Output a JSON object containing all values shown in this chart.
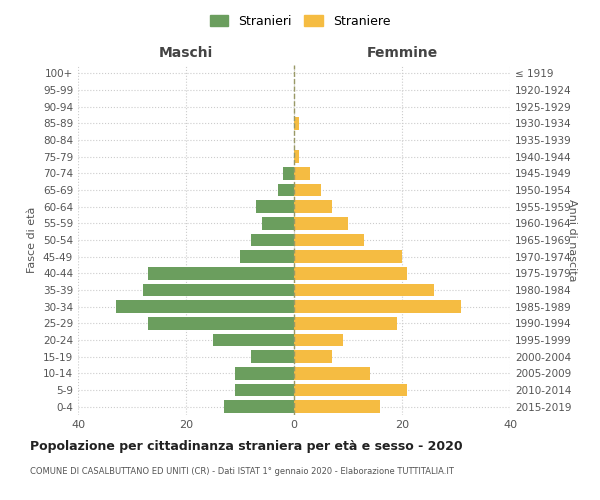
{
  "age_groups": [
    "0-4",
    "5-9",
    "10-14",
    "15-19",
    "20-24",
    "25-29",
    "30-34",
    "35-39",
    "40-44",
    "45-49",
    "50-54",
    "55-59",
    "60-64",
    "65-69",
    "70-74",
    "75-79",
    "80-84",
    "85-89",
    "90-94",
    "95-99",
    "100+"
  ],
  "birth_years": [
    "2015-2019",
    "2010-2014",
    "2005-2009",
    "2000-2004",
    "1995-1999",
    "1990-1994",
    "1985-1989",
    "1980-1984",
    "1975-1979",
    "1970-1974",
    "1965-1969",
    "1960-1964",
    "1955-1959",
    "1950-1954",
    "1945-1949",
    "1940-1944",
    "1935-1939",
    "1930-1934",
    "1925-1929",
    "1920-1924",
    "≤ 1919"
  ],
  "maschi": [
    13,
    11,
    11,
    8,
    15,
    27,
    33,
    28,
    27,
    10,
    8,
    6,
    7,
    3,
    2,
    0,
    0,
    0,
    0,
    0,
    0
  ],
  "femmine": [
    16,
    21,
    14,
    7,
    9,
    19,
    31,
    26,
    21,
    20,
    13,
    10,
    7,
    5,
    3,
    1,
    0,
    1,
    0,
    0,
    0
  ],
  "color_maschi": "#6b9e5e",
  "color_femmine": "#f5bc42",
  "background_color": "#ffffff",
  "grid_color": "#cccccc",
  "dashed_line_color": "#999966",
  "title": "Popolazione per cittadinanza straniera per età e sesso - 2020",
  "subtitle": "COMUNE DI CASALBUTTANO ED UNITI (CR) - Dati ISTAT 1° gennaio 2020 - Elaborazione TUTTITALIA.IT",
  "xlabel_left": "Maschi",
  "xlabel_right": "Femmine",
  "ylabel_left": "Fasce di età",
  "ylabel_right": "Anni di nascita",
  "legend_maschi": "Stranieri",
  "legend_femmine": "Straniere",
  "xlim": 40
}
